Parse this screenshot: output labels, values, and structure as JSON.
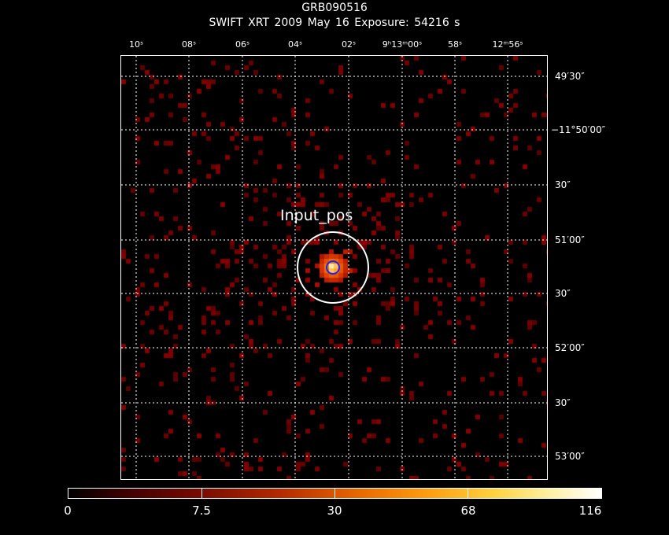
{
  "title": "GRB090516",
  "subtitle": "SWIFT XRT    2009 May 16    Exposure: 54216 s",
  "ra_ticks": [
    {
      "label": "10ˢ"
    },
    {
      "label": "08ˢ"
    },
    {
      "label": "06ˢ"
    },
    {
      "label": "04ˢ"
    },
    {
      "label": "02ˢ"
    },
    {
      "label": "9ʰ13ᵐ00ˢ"
    },
    {
      "label": "58ˢ"
    },
    {
      "label": "12ᵐ56ˢ"
    }
  ],
  "dec_ticks": [
    {
      "label": "49′30″"
    },
    {
      "label": "−11°50′00″"
    },
    {
      "label": "30″"
    },
    {
      "label": "51′00″"
    },
    {
      "label": "30″"
    },
    {
      "label": "52′00″"
    },
    {
      "label": "30″"
    },
    {
      "label": "53′00″"
    }
  ],
  "region_label": "Input_pos",
  "colorbar": {
    "labels": [
      "0",
      "7.5",
      "30",
      "68",
      "116"
    ],
    "min": 0,
    "max": 116
  },
  "colors": {
    "background": "#000000",
    "grid": "#ffffff",
    "region_outer": "#ffffff",
    "region_inner": "#2020ff"
  }
}
